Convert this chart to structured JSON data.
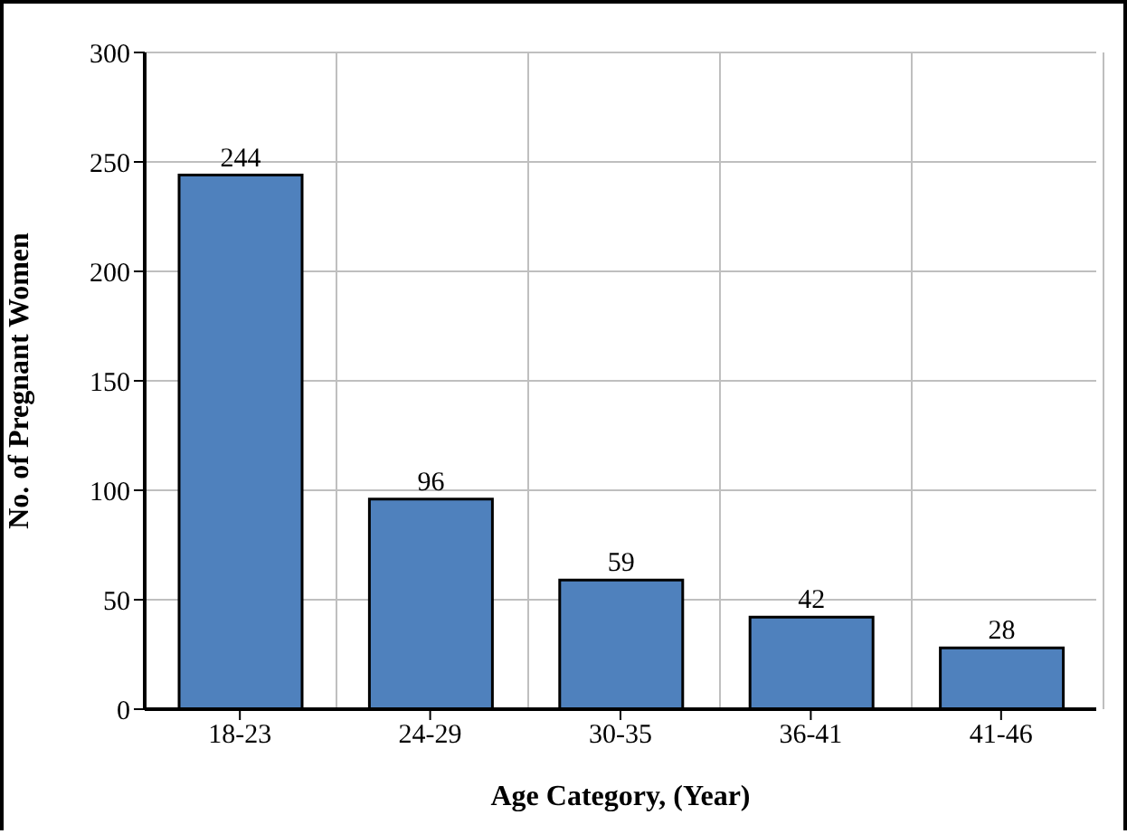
{
  "chart_data": {
    "type": "bar",
    "xlabel": "Age Category, (Year)",
    "ylabel": "No. of Pregnant Women",
    "categories": [
      "18-23",
      "24-29",
      "30-35",
      "36-41",
      "41-46"
    ],
    "values": [
      244,
      96,
      59,
      42,
      28
    ],
    "color": "#4f81bd",
    "ylim": [
      0,
      300
    ],
    "yticks": [
      0,
      50,
      100,
      150,
      200,
      250,
      300
    ],
    "grid": true,
    "data_labels": true
  }
}
